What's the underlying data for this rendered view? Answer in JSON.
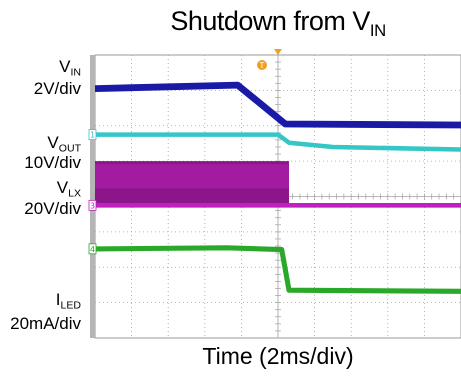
{
  "chart_data": {
    "type": "line",
    "title": {
      "main": "Shutdown from V",
      "sub": "IN"
    },
    "xlabel": "Time (2ms/div)",
    "x_divisions": 10,
    "y_divisions": 8,
    "grid": true,
    "trigger_marker": "T",
    "channels": [
      {
        "id": "vin",
        "label": "V",
        "label_sub": "IN",
        "scale": "2V/div",
        "marker": "",
        "color": "#1a1aa6",
        "x": [
          0,
          3.9,
          5.2,
          10
        ],
        "y": [
          7.05,
          7.15,
          6.05,
          6.02
        ],
        "thickness": 0.12
      },
      {
        "id": "vout",
        "label": "V",
        "label_sub": "OUT",
        "scale": "10V/div",
        "marker": "1",
        "color": "#35c6c6",
        "x": [
          0,
          5.0,
          5.3,
          6.5,
          10
        ],
        "y": [
          5.75,
          5.75,
          5.52,
          5.4,
          5.33
        ],
        "thickness": 0.08
      },
      {
        "id": "vlx",
        "label": "V",
        "label_sub": "LX",
        "scale": "20V/div",
        "marker": "3",
        "color": "#c020c0",
        "x": [
          0,
          5.3,
          5.3,
          10
        ],
        "y": [
          3.75,
          3.75,
          3.75,
          3.75
        ],
        "thickness": 0.08,
        "switching_band": {
          "x_start": 0,
          "x_end": 5.3,
          "y_low": 3.75,
          "y_high": 5.0
        }
      },
      {
        "id": "iled",
        "label": "I",
        "label_sub": "LED",
        "scale": "20mA/div",
        "marker": "4",
        "color": "#2aa82a",
        "x": [
          0,
          3.6,
          5.1,
          5.3,
          10
        ],
        "y": [
          2.52,
          2.55,
          2.5,
          1.35,
          1.32
        ],
        "thickness": 0.09
      }
    ]
  }
}
